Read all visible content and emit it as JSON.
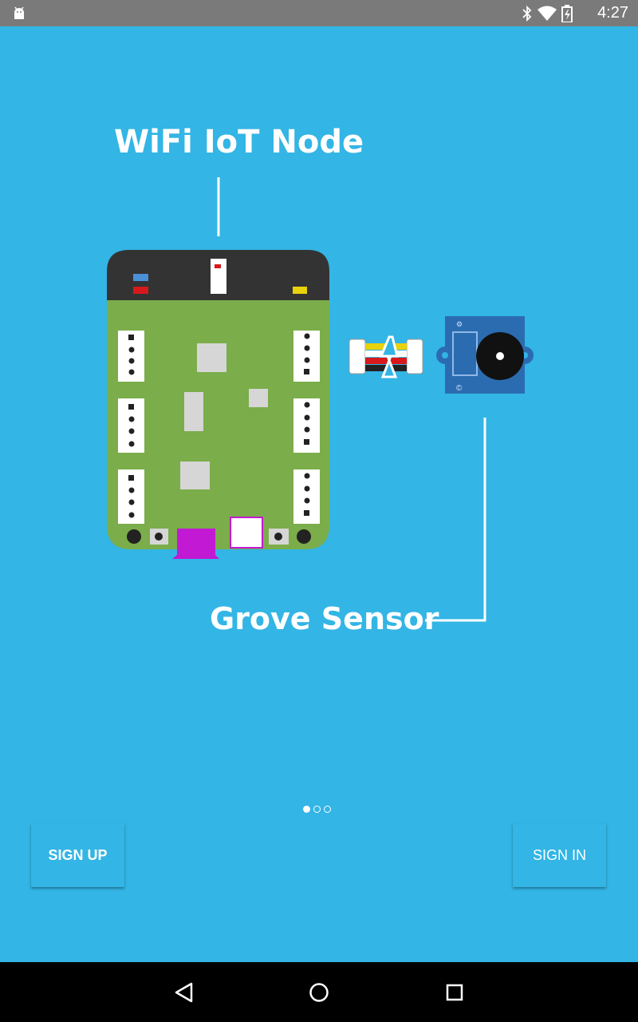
{
  "status_bar": {
    "time": "4:27",
    "icons": [
      "android-debug-icon",
      "bluetooth-icon",
      "wifi-icon",
      "battery-icon"
    ]
  },
  "illustration": {
    "node_label": "WiFi IoT Node",
    "sensor_label": "Grove Sensor"
  },
  "pager": {
    "pages": 3,
    "current": 1
  },
  "buttons": {
    "sign_up": "SIGN UP",
    "sign_in": "SIGN IN"
  },
  "nav_bar": {
    "items": [
      "back-icon",
      "home-icon",
      "recents-icon"
    ]
  },
  "colors": {
    "background": "#33b5e5",
    "board_green": "#7bad4a",
    "board_top": "#333333",
    "sensor_blue": "#2b6cb0",
    "usb_purple": "#c219d4"
  }
}
